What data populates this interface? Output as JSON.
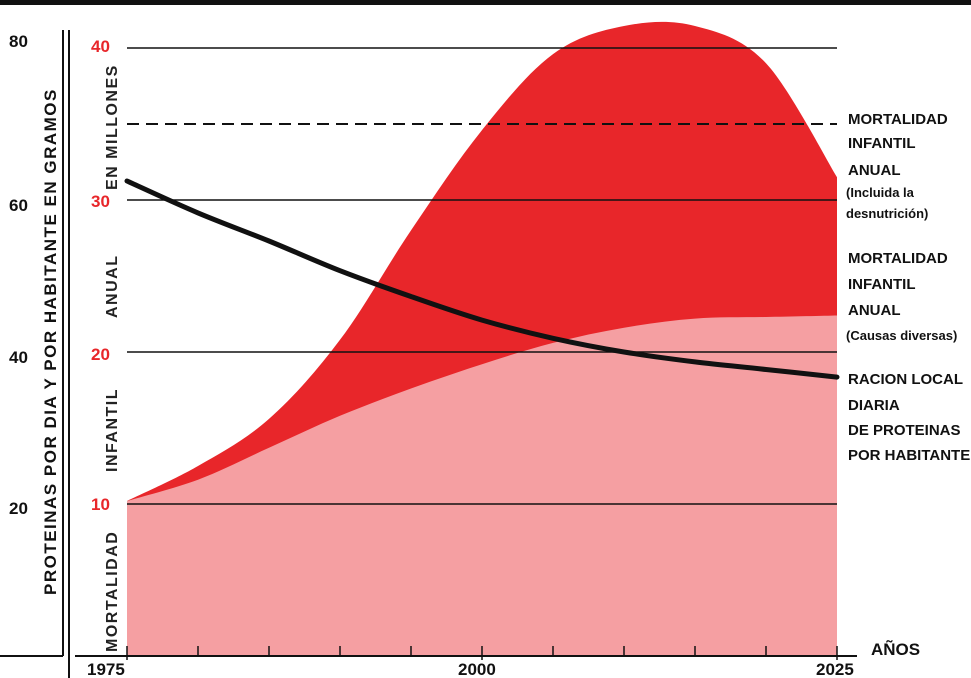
{
  "chart_data": {
    "type": "area",
    "title": "",
    "x": [
      1975,
      1980,
      1985,
      1990,
      1995,
      2000,
      2005,
      2010,
      2015,
      2020,
      2025
    ],
    "xlabel": "AÑOS",
    "xlim": [
      1975,
      2025
    ],
    "x_tick_labels": [
      "1975",
      "2000",
      "2025"
    ],
    "y_left": {
      "label": "PROTEINAS POR DIA Y POR HABITANTE EN GRAMOS",
      "ticks": [
        "80",
        "60",
        "40",
        "20"
      ],
      "lim": [
        0,
        80
      ]
    },
    "y_right": {
      "label_words": [
        "MORTALIDAD",
        "INFANTIL",
        "ANUAL",
        "EN MILLONES"
      ],
      "ticks": [
        "40",
        "30",
        "20",
        "10"
      ],
      "lim": [
        0,
        40
      ],
      "dashed_reference": 35
    },
    "series": [
      {
        "name": "MORTALIDAD INFANTIL ANUAL (Causas diversas)",
        "axis": "right",
        "color": "#f59fa2",
        "values": [
          10.2,
          11.6,
          13.7,
          15.8,
          17.6,
          19.2,
          20.6,
          21.6,
          22.2,
          22.3,
          22.4
        ]
      },
      {
        "name": "MORTALIDAD INFANTIL ANUAL (Incluida la desnutrición)",
        "axis": "right",
        "color": "#e8262a",
        "values": [
          10.2,
          12.5,
          15.6,
          20.8,
          28.0,
          34.6,
          39.6,
          41.6,
          41.6,
          39.0,
          31.5
        ]
      },
      {
        "name": "RACION LOCAL DIARIA DE PROTEINAS POR HABITANTE",
        "axis": "left",
        "color": "#111111",
        "values": [
          62.5,
          58.3,
          54.6,
          50.7,
          47.3,
          44.2,
          41.8,
          40.0,
          38.7,
          37.7,
          36.7
        ]
      }
    ],
    "grid": true
  },
  "legend": {
    "mortalidad_total": [
      "MORTALIDAD",
      "INFANTIL",
      "ANUAL"
    ],
    "mortalidad_total_note": [
      "(Incluida la",
      "desnutrición)"
    ],
    "mortalidad_diversas": [
      "MORTALIDAD",
      "INFANTIL",
      "ANUAL"
    ],
    "mortalidad_diversas_note": "(Causas diversas)",
    "racion": [
      "RACION LOCAL",
      "DIARIA",
      "DE PROTEINAS",
      "POR HABITANTE"
    ]
  }
}
